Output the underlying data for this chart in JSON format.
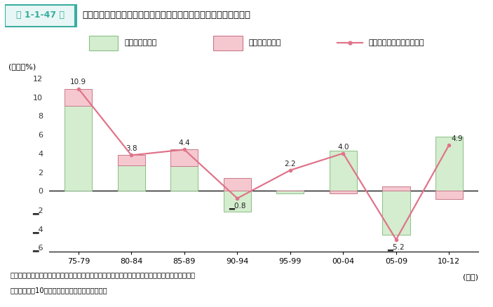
{
  "categories": [
    "75-79",
    "80-84",
    "85-89",
    "90-94",
    "95-99",
    "00-04",
    "05-09",
    "10-12"
  ],
  "green_bars": [
    9.1,
    2.7,
    2.6,
    -2.2,
    -0.3,
    4.3,
    -4.7,
    5.8
  ],
  "pink_bars": [
    1.8,
    1.1,
    1.8,
    1.4,
    0.0,
    -0.3,
    0.5,
    -0.9
  ],
  "line_values": [
    10.9,
    3.8,
    4.4,
    -0.8,
    2.2,
    4.0,
    -5.2,
    4.9
  ],
  "line_labels": [
    "10.9",
    "3.8",
    "4.4",
    "▂0.8",
    "2.2",
    "4.0",
    "▂5.2",
    "4.9"
  ],
  "green_color": "#d4edce",
  "green_edge": "#8bbf88",
  "pink_color": "#f5c8d0",
  "pink_edge": "#c87888",
  "line_color": "#e0748a",
  "ylabel": "(年率、%)",
  "xlabel": "(年度)",
  "ylim": [
    -6.5,
    12.5
  ],
  "yticks": [
    -6,
    -4,
    -2,
    0,
    2,
    4,
    6,
    8,
    10,
    12
  ],
  "ytick_labels": [
    "▂6",
    "▂4",
    "▂2",
    "0",
    "2",
    "4",
    "6",
    "8",
    "10",
    "12"
  ],
  "legend1": "実質労働生産性",
  "legend2": "価格転崁力指標",
  "legend3": "一人当たり名目付加価値額",
  "title_box": "第 1-1-47 図",
  "title_main": "一人当たり名目付加価値額上昇率とその変動要因（大企業製造業）",
  "note1": "資料：日本銀行「全国企業短期経済観測調査」、「企業物価指数」、財務省「法人企業統計年報」",
  "note2": "（注）資本金10億円以上を大企業製造業とした。",
  "bar_width": 0.52
}
